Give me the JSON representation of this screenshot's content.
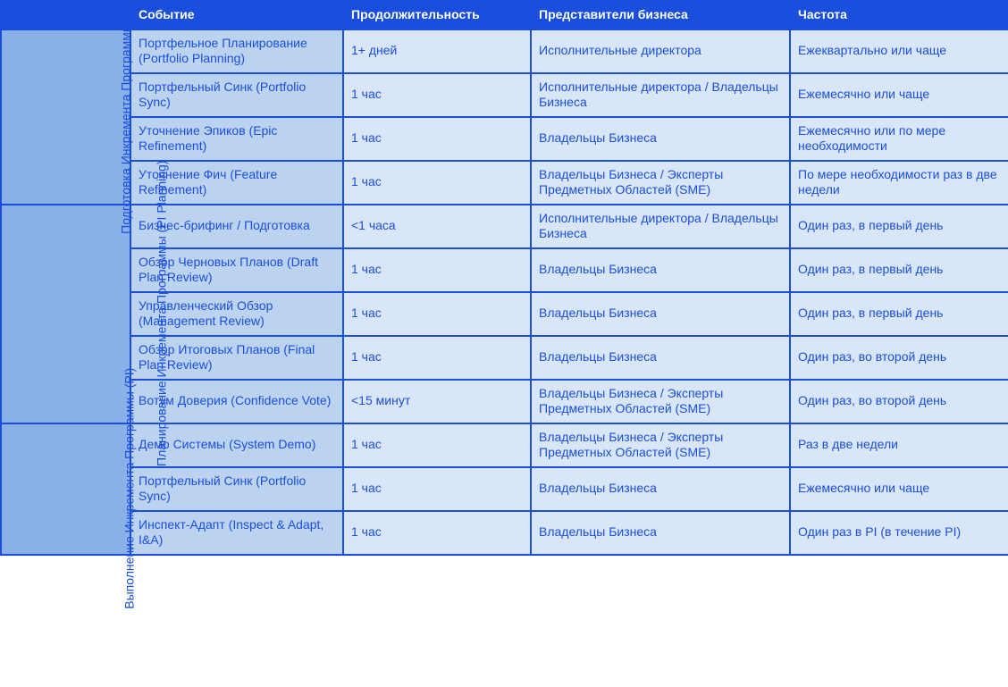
{
  "style": {
    "header_bg": "#1a4edc",
    "header_color": "#ffffff",
    "border_color": "#1a4edc",
    "phase_bg": "#8ab0e8",
    "phase_color": "#1a4edc",
    "event_bg": "#bcd3f0",
    "value_bg": "#d9e6f7",
    "text_color": "#1a4edc",
    "font_size_pt": 14
  },
  "header": {
    "corner": "",
    "event": "Событие",
    "duration": "Продолжительность",
    "reps": "Представители бизнеса",
    "freq": "Частота"
  },
  "sections": [
    {
      "phase": "Подготовка Инкремента Программы (PI)",
      "rows": [
        {
          "event": "Портфельное Планирование (Portfolio Planning)",
          "duration": "1+ дней",
          "reps": "Исполнительные директора",
          "freq": "Ежеквартально или чаще"
        },
        {
          "event": "Портфельный Синк (Portfolio Sync)",
          "duration": "1 час",
          "reps": "Исполнительные директора / Владельцы Бизнеса",
          "freq": "Ежемесячно или чаще"
        },
        {
          "event": "Уточнение Эпиков (Epic Refinement)",
          "duration": "1 час",
          "reps": "Владельцы Бизнеса",
          "freq": "Ежемесячно или по мере необходимости"
        },
        {
          "event": "Уточнение Фич (Feature Refinement)",
          "duration": "1 час",
          "reps": "Владельцы Бизнеса / Эксперты Предметных Областей (SME)",
          "freq": "По мере необходимости раз в две недели"
        }
      ]
    },
    {
      "phase": "Планирование Инкремента Программы (PI Planning)",
      "rows": [
        {
          "event": "Бизнес-брифинг / Подготовка",
          "duration": "<1 часа",
          "reps": "Исполнительные директора / Владельцы Бизнеса",
          "freq": "Один раз, в первый день"
        },
        {
          "event": "Обзор Черновых Планов (Draft Plan Review)",
          "duration": "1 час",
          "reps": "Владельцы Бизнеса",
          "freq": "Один раз, в первый день"
        },
        {
          "event": "Управленческий Обзор (Management Review)",
          "duration": "1 час",
          "reps": "Владельцы Бизнеса",
          "freq": "Один раз, в первый день"
        },
        {
          "event": "Обзор Итоговых Планов (Final Plan Review)",
          "duration": "1 час",
          "reps": "Владельцы Бизнеса",
          "freq": "Один раз, во второй день"
        },
        {
          "event": "Вотум Доверия (Confidence Vote)",
          "duration": "<15 минут",
          "reps": "Владельцы Бизнеса / Эксперты Предметных Областей (SME)",
          "freq": "Один раз, во второй день"
        }
      ]
    },
    {
      "phase": "Выполнение Инкремента Программы (PI)",
      "rows": [
        {
          "event": "Демо Системы (System Demo)",
          "duration": "1 час",
          "reps": "Владельцы Бизнеса / Эксперты Предметных Областей (SME)",
          "freq": "Раз в две недели"
        },
        {
          "event": "Портфельный Синк (Portfolio Sync)",
          "duration": "1 час",
          "reps": "Владельцы Бизнеса",
          "freq": "Ежемесячно или чаще"
        },
        {
          "event": "Инспект-Адапт (Inspect & Adapt, I&A)",
          "duration": "1 час",
          "reps": "Владельцы Бизнеса",
          "freq": "Один раз в PI (в течение PI)"
        }
      ]
    }
  ]
}
